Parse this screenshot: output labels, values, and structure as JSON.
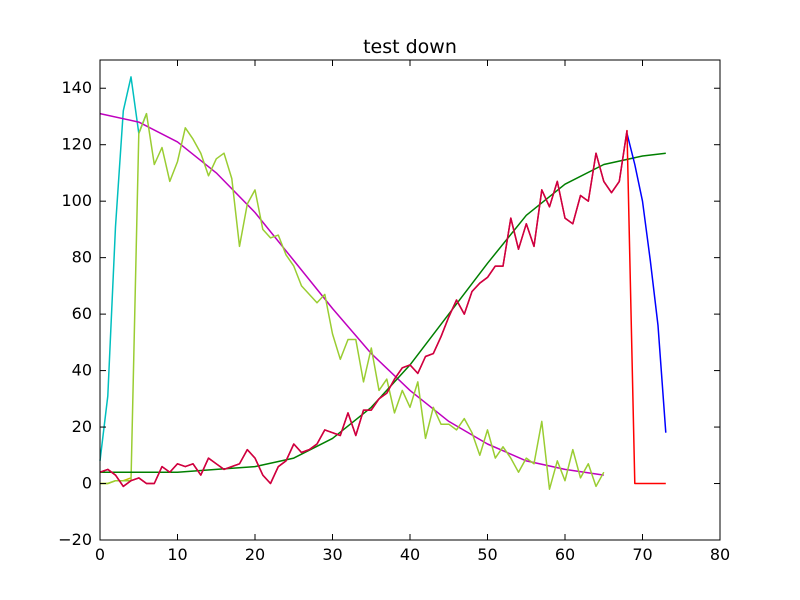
{
  "chart_data": {
    "type": "line",
    "title": "test down",
    "xlabel": "",
    "ylabel": "",
    "xlim": [
      0,
      80
    ],
    "ylim": [
      -20,
      150
    ],
    "x_ticks": [
      0,
      10,
      20,
      30,
      40,
      50,
      60,
      70,
      80
    ],
    "y_ticks": [
      -20,
      0,
      20,
      40,
      60,
      80,
      100,
      120,
      140
    ],
    "grid": false,
    "legend": "none",
    "series": [
      {
        "color": "#00bfbf",
        "x": [
          0,
          1,
          2,
          3,
          4,
          5,
          6
        ],
        "y": [
          8,
          31,
          91,
          132,
          144,
          124,
          131
        ]
      },
      {
        "color": "#bfbf00",
        "x": [
          0,
          1,
          2,
          3,
          4
        ],
        "y": [
          0,
          0,
          1,
          1,
          2
        ]
      },
      {
        "color": "#bf00bf",
        "x": [
          0,
          5,
          10,
          15,
          20,
          25,
          30,
          35,
          40,
          45,
          50,
          55,
          60,
          65
        ],
        "y": [
          131,
          128,
          121,
          110,
          96,
          79,
          62,
          46,
          33,
          22,
          14,
          8,
          5,
          3
        ]
      },
      {
        "color": "#9acd32",
        "x": [
          0,
          1,
          2,
          3,
          4,
          5,
          6,
          7,
          8,
          9,
          10,
          11,
          12,
          13,
          14,
          15,
          16,
          17,
          18,
          19,
          20,
          21,
          22,
          23,
          24,
          25,
          26,
          27,
          28,
          29,
          30,
          31,
          32,
          33,
          34,
          35,
          36,
          37,
          38,
          39,
          40,
          41,
          42,
          43,
          44,
          45,
          46,
          47,
          48,
          49,
          50,
          51,
          52,
          53,
          54,
          55,
          56,
          57,
          58,
          59,
          60,
          61,
          62,
          63,
          64,
          65
        ],
        "y": [
          0,
          0,
          1,
          1,
          1,
          124,
          131,
          113,
          119,
          107,
          114,
          126,
          122,
          117,
          109,
          115,
          117,
          108,
          84,
          99,
          104,
          90,
          87,
          88,
          81,
          77,
          70,
          67,
          64,
          67,
          53,
          44,
          51,
          51,
          36,
          48,
          33,
          37,
          25,
          33,
          27,
          36,
          16,
          27,
          21,
          21,
          19,
          23,
          18,
          10,
          19,
          9,
          13,
          9,
          4,
          9,
          7,
          22,
          -2,
          8,
          1,
          12,
          2,
          7,
          -1,
          4
        ]
      },
      {
        "color": "#007f00",
        "x": [
          0,
          5,
          10,
          15,
          20,
          25,
          30,
          35,
          40,
          45,
          50,
          55,
          60,
          65,
          70,
          73
        ],
        "y": [
          4,
          4,
          4,
          5,
          6,
          9,
          16,
          27,
          42,
          60,
          78,
          95,
          106,
          113,
          116,
          117
        ]
      },
      {
        "color": "#0000ff",
        "x": [
          68,
          69,
          70,
          71,
          72,
          73
        ],
        "y": [
          124,
          113,
          100,
          79,
          56,
          18
        ]
      },
      {
        "color": "#ff0000",
        "x": [
          0,
          1,
          2,
          3,
          4,
          5,
          6,
          7,
          8,
          9,
          10,
          11,
          12,
          13,
          14,
          15,
          16,
          17,
          18,
          19,
          20,
          21,
          22,
          23,
          24,
          25,
          26,
          27,
          28,
          29,
          30,
          31,
          32,
          33,
          34,
          35,
          36,
          37,
          38,
          39,
          40,
          41,
          42,
          43,
          44,
          45,
          46,
          47,
          48,
          49,
          50,
          51,
          52,
          53,
          54,
          55,
          56,
          57,
          58,
          59,
          60,
          61,
          62,
          63,
          64,
          65,
          66,
          67,
          68,
          69,
          70,
          71,
          72,
          73
        ],
        "y": [
          4,
          5,
          3,
          -1,
          1,
          2,
          0,
          0,
          6,
          4,
          7,
          6,
          7,
          3,
          9,
          7,
          5,
          6,
          7,
          12,
          9,
          3,
          0,
          6,
          8,
          14,
          11,
          12,
          14,
          19,
          18,
          17,
          25,
          17,
          26,
          26,
          30,
          32,
          37,
          41,
          42,
          39,
          45,
          46,
          52,
          59,
          65,
          60,
          68,
          71,
          73,
          77,
          77,
          94,
          83,
          92,
          84,
          104,
          98,
          107,
          94,
          92,
          102,
          100,
          117,
          107,
          103,
          107,
          125,
          0,
          0,
          0,
          0,
          0
        ]
      },
      {
        "color": "#cc0044",
        "x": [
          0,
          1,
          2,
          3,
          4,
          5,
          6,
          7,
          8,
          9,
          10,
          11,
          12,
          13,
          14,
          15,
          16,
          17,
          18,
          19,
          20,
          21,
          22,
          23,
          24,
          25,
          26,
          27,
          28,
          29,
          30,
          31,
          32,
          33,
          34,
          35,
          36,
          37,
          38,
          39,
          40,
          41,
          42,
          43,
          44,
          45,
          46,
          47,
          48,
          49,
          50,
          51,
          52,
          53,
          54,
          55,
          56,
          57,
          58,
          59,
          60,
          61,
          62,
          63,
          64,
          65,
          66,
          67,
          68
        ],
        "y": [
          4,
          5,
          3,
          -1,
          1,
          2,
          0,
          0,
          6,
          4,
          7,
          6,
          7,
          3,
          9,
          7,
          5,
          6,
          7,
          12,
          9,
          3,
          0,
          6,
          8,
          14,
          11,
          12,
          14,
          19,
          18,
          17,
          25,
          17,
          26,
          26,
          30,
          32,
          37,
          41,
          42,
          39,
          45,
          46,
          52,
          59,
          65,
          60,
          68,
          71,
          73,
          77,
          77,
          94,
          83,
          92,
          84,
          104,
          98,
          107,
          94,
          92,
          102,
          100,
          117,
          107,
          103,
          107,
          125
        ]
      }
    ]
  }
}
